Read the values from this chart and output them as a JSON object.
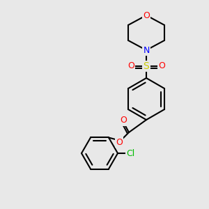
{
  "bg_color": "#e8e8e8",
  "bond_color": "#000000",
  "bond_lw": 1.5,
  "atom_colors": {
    "O": "#ff0000",
    "N": "#0000ff",
    "S": "#cccc00",
    "Cl": "#00bb00",
    "C": "#000000"
  },
  "font_size": 9,
  "font_size_small": 8
}
